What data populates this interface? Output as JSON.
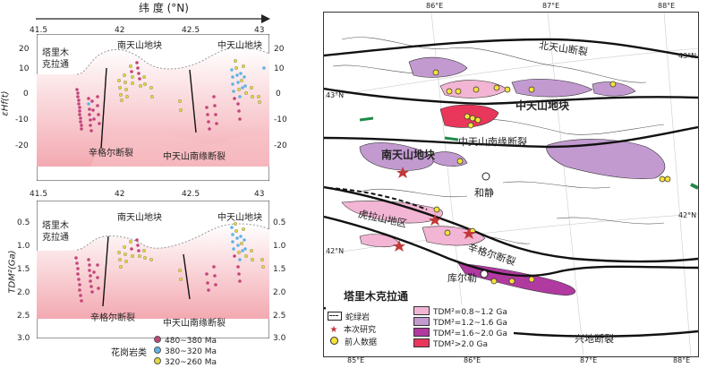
{
  "top_axis": {
    "label": "纬 度 (°N)"
  },
  "upper_plot": {
    "x_ticks": [
      "41.5",
      "42",
      "42.5",
      "43"
    ],
    "y_ticks_left": [
      "20",
      "10",
      "0",
      "-10",
      "-20"
    ],
    "y_ticks_right": [
      "20",
      "10",
      "0",
      "-10",
      "-20"
    ],
    "ylabel": "εHf(t)",
    "block_labels": {
      "tarim": "塔里木\n克拉通",
      "south_tianshan": "南天山地块",
      "central_tianshan": "中天山地块"
    },
    "fault_labels": {
      "xingeer": "辛格尔断裂",
      "central_south": "中天山南缘断裂"
    }
  },
  "lower_plot": {
    "x_ticks": [
      "41.5",
      "42",
      "42.5",
      "43"
    ],
    "y_ticks_left": [
      "0.5",
      "1.0",
      "1.5",
      "2.0",
      "2.5",
      "3.0"
    ],
    "y_ticks_right": [
      "0.5",
      "1.0",
      "1.5",
      "2.0",
      "2.5",
      "3.0"
    ],
    "ylabel": "TDM²(Ga)",
    "block_labels": {
      "tarim": "塔里木\n克拉通",
      "south_tianshan": "南天山地块",
      "central_tianshan": "中天山地块"
    },
    "fault_labels": {
      "xingeer": "辛格尔断裂",
      "central_south": "中天山南缘断裂"
    }
  },
  "legend_left": {
    "title": "花岗岩类",
    "items": [
      {
        "label": "480~380 Ma",
        "color": "#c2457a"
      },
      {
        "label": "380~320 Ma",
        "color": "#5fb3e6"
      },
      {
        "label": "320~260 Ma",
        "color": "#e6d83a"
      }
    ]
  },
  "map": {
    "lon_ticks_top": [
      "86°E",
      "87°E",
      "88°E"
    ],
    "lon_ticks_bottom": [
      "85°E",
      "86°E",
      "87°E",
      "88°E"
    ],
    "lat_ticks": [
      "43°N",
      "43°N",
      "42°N",
      "42°N"
    ],
    "fault_labels": {
      "north_tianshan": "北天山断裂",
      "central_south": "中天山南缘断裂",
      "xingeer": "辛格尔断裂",
      "xingdi": "兴地断裂"
    },
    "block_labels": {
      "central_tianshan": "中天山地块",
      "south_tianshan": "南天山地块",
      "tarim": "塔里木克拉通",
      "kuruktag": "虎拉山地区"
    },
    "places": {
      "hejing": "和静",
      "korla": "库尔勒"
    },
    "legend": {
      "ophiolite": "蛇绿岩",
      "this_study": "本次研究",
      "previous": "前人数据",
      "tdm_items": [
        {
          "label": "TDM²=0.8~1.2 Ga",
          "color": "#f2b5d4"
        },
        {
          "label": "TDM²=1.2~1.6 Ga",
          "color": "#c29ad0"
        },
        {
          "label": "TDM²=1.6~2.0 Ga",
          "color": "#b03aa0"
        },
        {
          "label": "TDM²>2.0 Ga",
          "color": "#e8375a"
        }
      ]
    }
  }
}
